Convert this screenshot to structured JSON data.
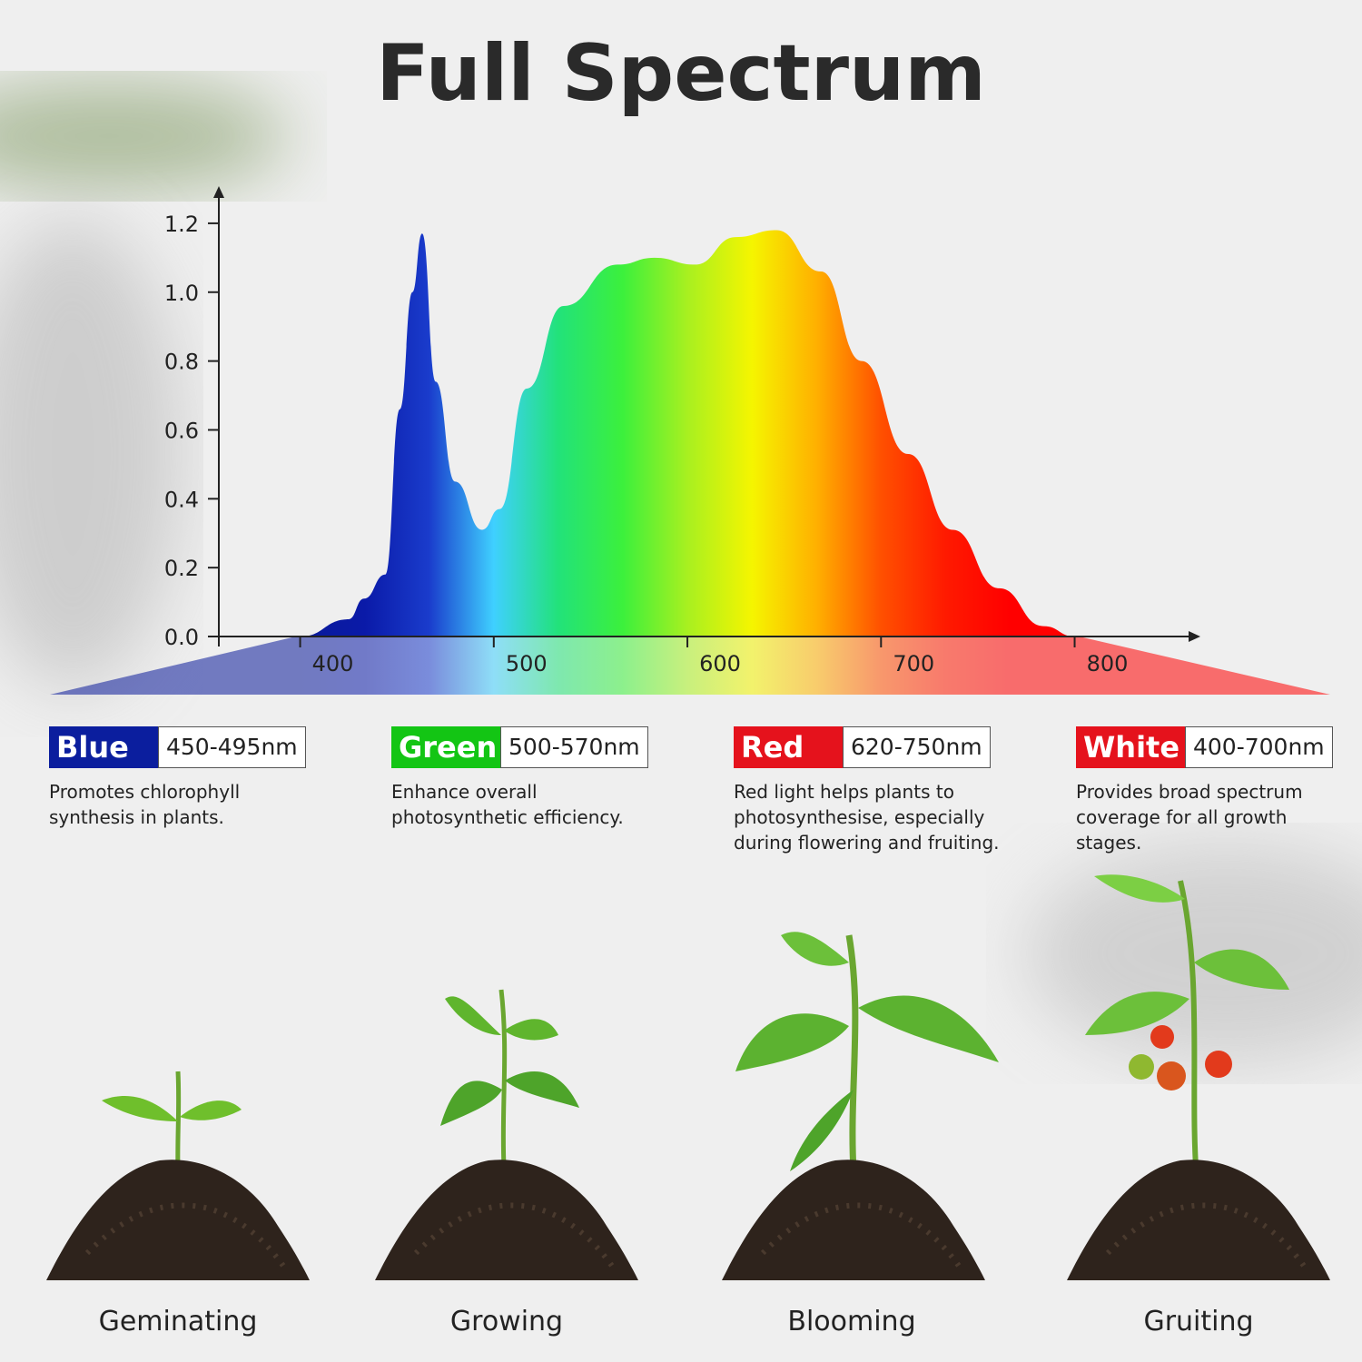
{
  "title": "Full Spectrum",
  "chart_data": {
    "type": "area",
    "series": [
      {
        "x": [
          400,
          425,
          433,
          444,
          451.5,
          458,
          463,
          470,
          480,
          494,
          503,
          517,
          536,
          564,
          583,
          604,
          625,
          646,
          669,
          690,
          714,
          737,
          761,
          784,
          800
        ],
        "values": [
          0,
          0.05,
          0.11,
          0.18,
          0.66,
          1.0,
          1.17,
          0.74,
          0.45,
          0.31,
          0.37,
          0.72,
          0.96,
          1.08,
          1.1,
          1.08,
          1.16,
          1.18,
          1.06,
          0.8,
          0.53,
          0.31,
          0.14,
          0.03,
          0
        ],
        "gradient": [
          "#0a1a9a",
          "#0a1aa8",
          "#1a3ccc",
          "#3fd0ff",
          "#22e27a",
          "#3cf03c",
          "#a8f020",
          "#f5f500",
          "#ffb000",
          "#ff5000",
          "#ff1a00",
          "#ff0000",
          "#ff0000"
        ]
      }
    ],
    "xlim": [
      358,
      864
    ],
    "xticks": [
      400,
      500,
      600,
      700,
      800
    ],
    "ylim": [
      0,
      1.3
    ],
    "yticks": [
      {
        "value": 0,
        "label": "0.0"
      },
      0.2,
      0.4,
      0.6,
      0.8,
      {
        "value": 1,
        "label": "1.0"
      },
      1.2
    ]
  },
  "cards": [
    {
      "name": "Blue",
      "range": "450-495nm",
      "color": "#0b1e9e",
      "description": "Promotes chlorophyll synthesis in plants."
    },
    {
      "name": "Green",
      "range": "500-570nm",
      "color": "#13c514",
      "description": "Enhance overall photosynthetic efficiency."
    },
    {
      "name": "Red",
      "range": "620-750nm",
      "color": "#e5121c",
      "description": "Red light helps plants to photosynthesise, especially during flowering and fruiting."
    },
    {
      "name": "White",
      "range": "400-700nm",
      "color": "#e5121c",
      "description": "Provides broad spectrum coverage for all growth stages."
    }
  ],
  "stages": [
    "Geminating",
    "Growing",
    "Blooming",
    "Gruiting"
  ]
}
